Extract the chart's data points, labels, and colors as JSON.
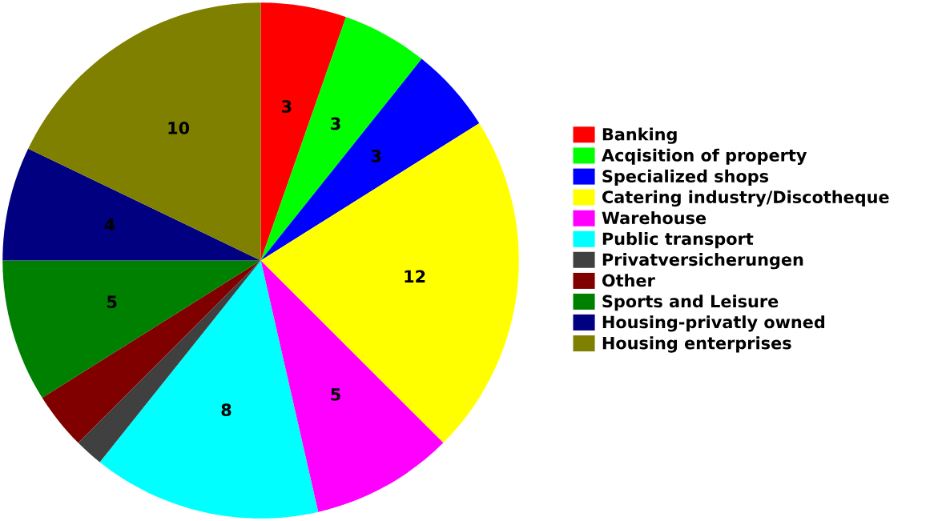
{
  "chart_data": {
    "type": "pie",
    "categories": [
      "Banking",
      "Acqisition of property",
      "Specialized shops",
      "Catering industry/Discotheque",
      "Warehouse",
      "Public transport",
      "Privatversicherungen",
      "Other",
      "Sports and Leisure",
      "Housing-privatly owned",
      "Housing enterprises"
    ],
    "values": [
      3,
      3,
      3,
      12,
      5,
      8,
      1,
      2,
      5,
      4,
      10
    ],
    "value_labels": [
      "3",
      "3",
      "3",
      "12",
      "5",
      "8",
      null,
      null,
      "5",
      "4",
      "10"
    ],
    "colors": [
      "#ff0000",
      "#00ff00",
      "#0000ff",
      "#ffff00",
      "#ff00ff",
      "#00ffff",
      "#404040",
      "#800000",
      "#008000",
      "#000080",
      "#808000"
    ],
    "legend": "right"
  }
}
